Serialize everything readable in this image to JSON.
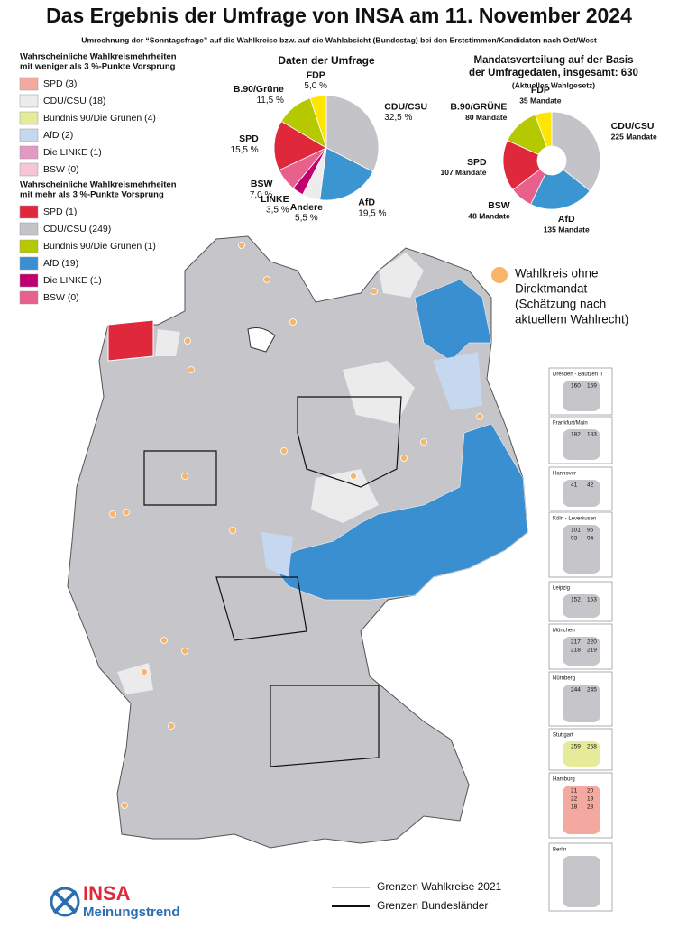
{
  "title": "Das Ergebnis der Umfrage von INSA am 11. November 2024",
  "subtitle": "Umrechnung der “Sonntagsfrage” auf die Wahlkreise bzw. auf die Wahlabsicht (Bundestag) bei den Erststimmen/Kandidaten nach Ost/West",
  "legend_below_3": {
    "title": [
      "Wahrscheinliche Wahlkreismehrheiten",
      "mit weniger als 3 %-Punkte Vorsprung"
    ],
    "items": [
      {
        "label": "SPD (3)",
        "color": "#f4a9a0"
      },
      {
        "label": "CDU/CSU (18)",
        "color": "#ececec"
      },
      {
        "label": "Bündnis 90/Die Grünen (4)",
        "color": "#e6eb9a"
      },
      {
        "label": "AfD (2)",
        "color": "#c5d8ef"
      },
      {
        "label": "Die LINKE (1)",
        "color": "#e39ac2"
      },
      {
        "label": "BSW (0)",
        "color": "#f6c6d6"
      }
    ]
  },
  "legend_above_3": {
    "title": [
      "Wahrscheinliche Wahlkreismehrheiten",
      "mit mehr als 3 %-Punkte Vorsprung"
    ],
    "items": [
      {
        "label": "SPD (1)",
        "color": "#e0283c"
      },
      {
        "label": "CDU/CSU (249)",
        "color": "#c4c4c8"
      },
      {
        "label": "Bündnis 90/Die Grünen (1)",
        "color": "#b5c800"
      },
      {
        "label": "AfD (19)",
        "color": "#3a8fd0"
      },
      {
        "label": "Die LINKE (1)",
        "color": "#c0006f"
      },
      {
        "label": "BSW (0)",
        "color": "#e8608c"
      }
    ]
  },
  "chart_data": [
    {
      "type": "pie",
      "title": "Daten der Umfrage",
      "categories": [
        "CDU/CSU",
        "AfD",
        "Andere",
        "LINKE",
        "BSW",
        "SPD",
        "B.90/Grüne",
        "FDP"
      ],
      "values": [
        32.5,
        19.5,
        5.5,
        3.5,
        7.0,
        15.5,
        11.5,
        5.0
      ],
      "value_labels": [
        "32,5 %",
        "19,5 %",
        "5,5 %",
        "3,5 %",
        "7,0 %",
        "15,5 %",
        "11,5 %",
        "5,0 %"
      ],
      "colors": [
        "#c4c4c8",
        "#3a95d0",
        "#ececec",
        "#c0006f",
        "#e8608c",
        "#e0283c",
        "#b5c800",
        "#ffe600"
      ]
    },
    {
      "type": "donut",
      "title": [
        "Mandatsverteilung auf der Basis",
        "der Umfragedaten, insgesamt: 630"
      ],
      "subtitle": "(Aktuelles Wahlgesetz)",
      "categories": [
        "CDU/CSU",
        "AfD",
        "BSW",
        "SPD",
        "B.90/GRÜNE",
        "FDP"
      ],
      "values": [
        225,
        135,
        48,
        107,
        80,
        35
      ],
      "value_labels": [
        "225 Mandate",
        "135 Mandate",
        "48 Mandate",
        "107 Mandate",
        "80 Mandate",
        "35 Mandate"
      ],
      "colors": [
        "#c4c4c8",
        "#3a95d0",
        "#e8608c",
        "#e0283c",
        "#b5c800",
        "#ffe600"
      ]
    }
  ],
  "map_note": [
    "Wahlkreis ohne",
    "Direktmandat",
    "(Schätzung nach",
    "aktuellem Wahlrecht)"
  ],
  "insets": [
    {
      "label": "Dresden - Bautzen II",
      "numbers": [
        "160",
        "159"
      ]
    },
    {
      "label": "Frankfurt/Main",
      "numbers": [
        "182",
        "183"
      ]
    },
    {
      "label": "Hannover",
      "numbers": [
        "41",
        "42"
      ]
    },
    {
      "label": "Köln - Leverkusen",
      "numbers": [
        "101",
        "95",
        "93",
        "94"
      ]
    },
    {
      "label": "Leipzig",
      "numbers": [
        "152",
        "153"
      ]
    },
    {
      "label": "München",
      "numbers": [
        "217",
        "220",
        "218",
        "219"
      ]
    },
    {
      "label": "Nürnberg",
      "numbers": [
        "244",
        "245"
      ]
    },
    {
      "label": "Stuttgart",
      "numbers": [
        "259",
        "258"
      ]
    },
    {
      "label": "Hamburg",
      "numbers": [
        "21",
        "20",
        "22",
        "19",
        "18",
        "23"
      ]
    },
    {
      "label": "Berlin",
      "numbers": []
    }
  ],
  "border_legend": [
    "Grenzen Wahlkreise 2021",
    "Grenzen Bundesländer"
  ],
  "logo": {
    "brand": "INSA",
    "sub": "Meinungstrend"
  }
}
